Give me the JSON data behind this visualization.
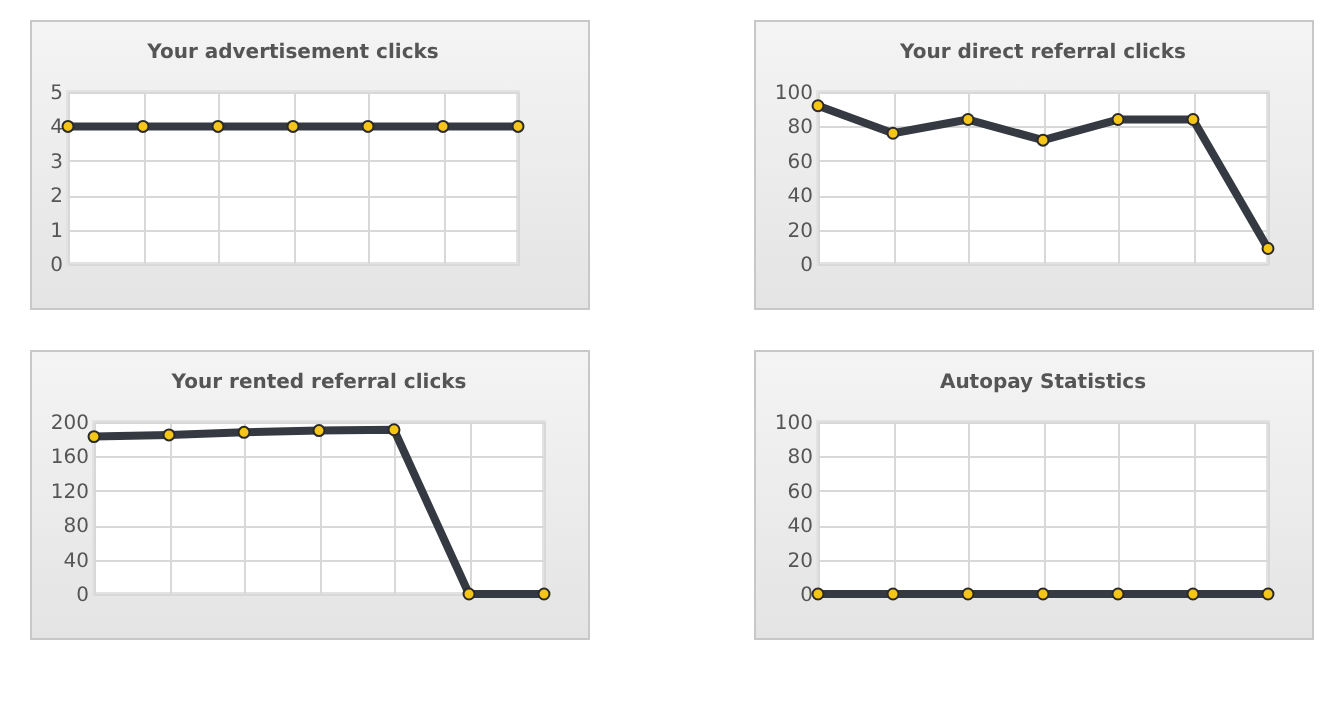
{
  "chart_data": [
    {
      "type": "line",
      "title": "Your advertisement clicks",
      "categories": [
        null,
        null,
        null,
        null,
        null,
        null,
        null
      ],
      "series": [
        {
          "color": "#353a42",
          "values": [
            4,
            4,
            4,
            4,
            4,
            4,
            4
          ]
        }
      ],
      "ylim": [
        0,
        5
      ],
      "yticks": [
        0,
        1,
        2,
        3,
        4,
        5
      ],
      "grid": true,
      "marker": "circle",
      "tick_labels": "y"
    },
    {
      "type": "line",
      "title": "Your direct referral clicks",
      "categories": [
        null,
        null,
        null,
        null,
        null,
        null,
        null
      ],
      "series": [
        {
          "color": "#353a42",
          "values": [
            92,
            76,
            84,
            72,
            84,
            84,
            9
          ]
        }
      ],
      "ylim": [
        0,
        100
      ],
      "yticks": [
        0,
        20,
        40,
        60,
        80,
        100
      ],
      "grid": true,
      "marker": "circle",
      "tick_labels": "y"
    },
    {
      "type": "line",
      "title": "Your rented referral clicks",
      "categories": [
        null,
        null,
        null,
        null,
        null,
        null,
        null
      ],
      "series": [
        {
          "color": "#353a42",
          "values": [
            183,
            185,
            188,
            190,
            191,
            0,
            0
          ]
        }
      ],
      "ylim": [
        0,
        200
      ],
      "yticks": [
        0,
        40,
        80,
        120,
        160,
        200
      ],
      "grid": true,
      "marker": "circle",
      "tick_labels": "y"
    },
    {
      "type": "line",
      "title": "Autopay Statistics",
      "categories": [
        null,
        null,
        null,
        null,
        null,
        null,
        null
      ],
      "series": [
        {
          "color": "#353a42",
          "values": [
            0,
            0,
            0,
            0,
            0,
            0,
            0
          ]
        }
      ],
      "ylim": [
        0,
        100
      ],
      "yticks": [
        0,
        20,
        40,
        60,
        80,
        100
      ],
      "grid": true,
      "marker": "circle",
      "tick_labels": "y"
    }
  ]
}
